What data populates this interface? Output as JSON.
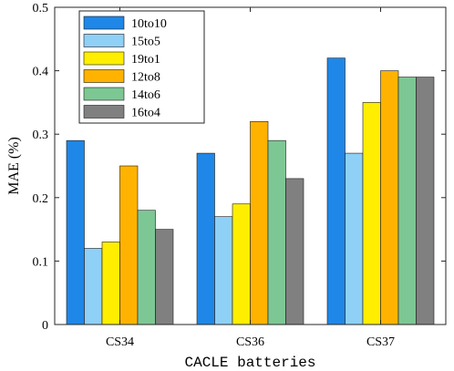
{
  "chart_data": {
    "type": "bar",
    "categories": [
      "CS34",
      "CS36",
      "CS37"
    ],
    "series": [
      {
        "name": "10to10",
        "color": "#1f87e8",
        "values": [
          0.29,
          0.27,
          0.42
        ]
      },
      {
        "name": "15to5",
        "color": "#8fd0f7",
        "values": [
          0.12,
          0.17,
          0.27
        ]
      },
      {
        "name": "19to1",
        "color": "#ffee00",
        "values": [
          0.13,
          0.19,
          0.35
        ]
      },
      {
        "name": "12to8",
        "color": "#ffb300",
        "values": [
          0.25,
          0.32,
          0.4
        ]
      },
      {
        "name": "14to6",
        "color": "#7dc794",
        "values": [
          0.18,
          0.29,
          0.39
        ]
      },
      {
        "name": "16to4",
        "color": "#808080",
        "values": [
          0.15,
          0.23,
          0.39
        ]
      }
    ],
    "xlabel": "CACLE batteries",
    "ylabel": "MAE (%)",
    "ylim": [
      0,
      0.5
    ],
    "yticks": [
      "0",
      "0.1",
      "0.2",
      "0.3",
      "0.4",
      "0.5"
    ],
    "grid": false,
    "legend_position": "top-left"
  }
}
